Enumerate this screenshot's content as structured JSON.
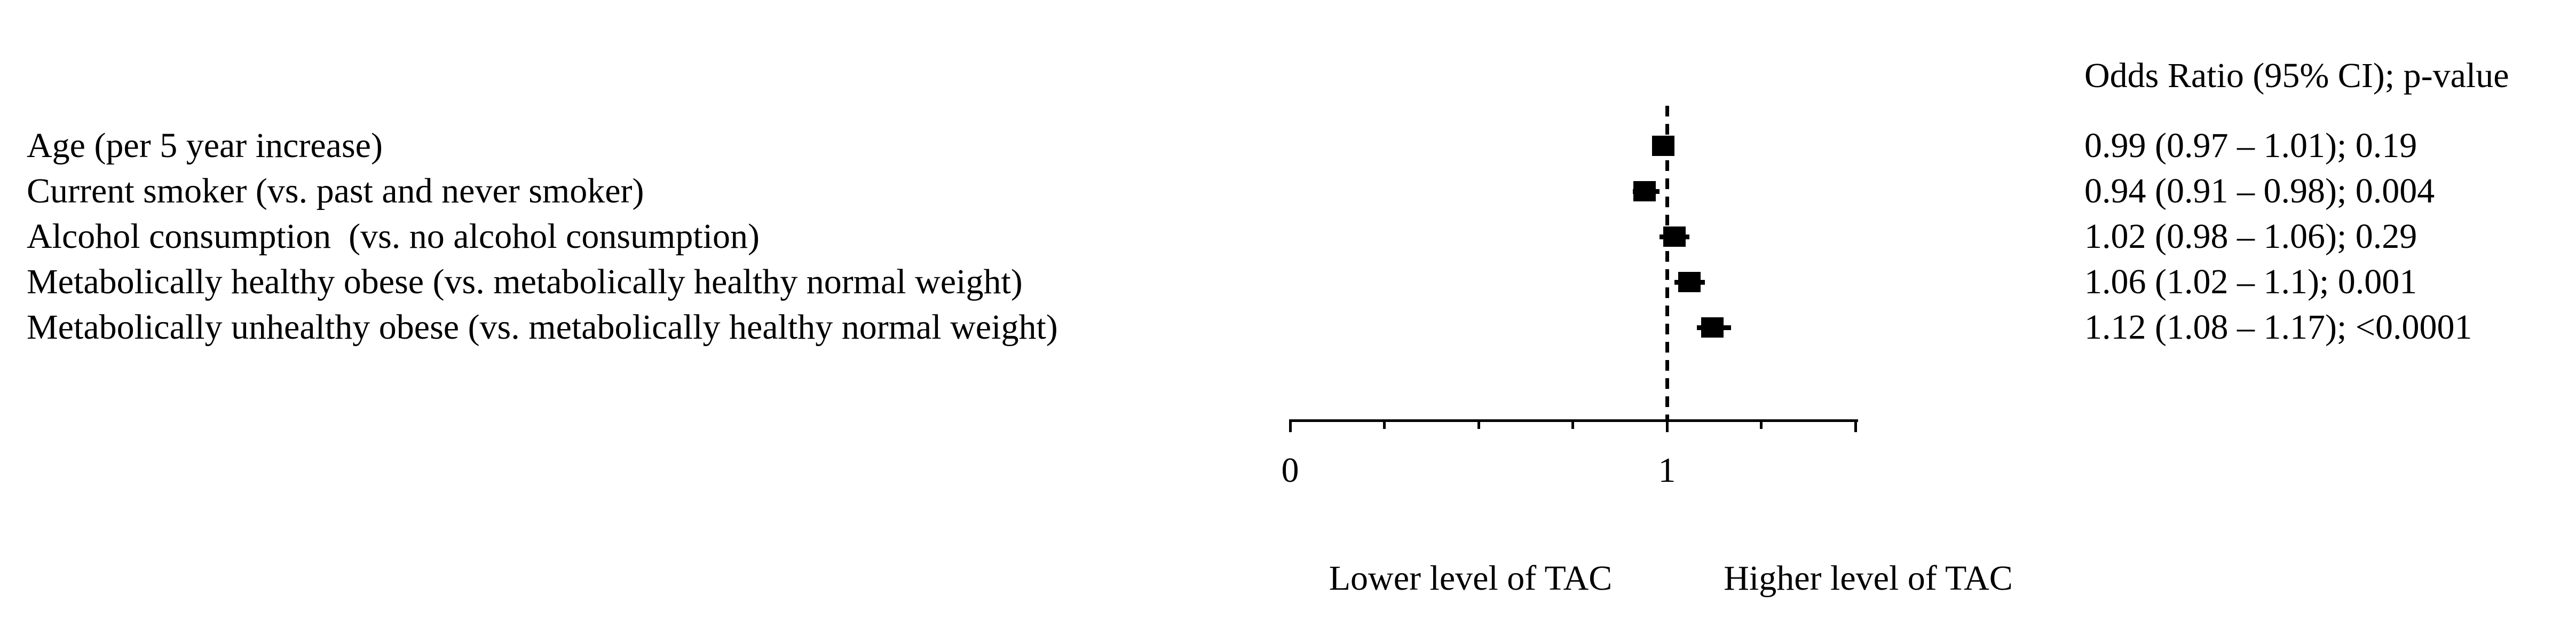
{
  "figure": {
    "background_color": "#ffffff",
    "text_color": "#000000"
  },
  "header": {
    "or_column": "Odds Ratio (95% CI); p-value"
  },
  "footer": {
    "lower": "Lower level of TAC",
    "higher": "Higher level of TAC"
  },
  "chart_data": {
    "type": "scatter",
    "subtype": "forest-plot",
    "title": "",
    "xlabel": "",
    "ylabel": "",
    "legend": null,
    "grid": false,
    "axis": {
      "min": 0,
      "max": 1.5,
      "ticks": [
        0,
        0.25,
        0.5,
        0.75,
        1,
        1.25,
        1.5
      ],
      "major_ticks": [
        0,
        1,
        1.5
      ],
      "tick_labels": [
        {
          "value": 0,
          "label": "0"
        },
        {
          "value": 1,
          "label": "1"
        }
      ],
      "reference_line": 1
    },
    "rows": [
      {
        "label": "Age (per 5 year increase)",
        "or": 0.99,
        "ci_low": 0.97,
        "ci_high": 1.01,
        "p_value": "0.19",
        "display": "0.99 (0.97 – 1.01); 0.19"
      },
      {
        "label": "Current smoker (vs. past and never smoker)",
        "or": 0.94,
        "ci_low": 0.91,
        "ci_high": 0.98,
        "p_value": "0.004",
        "display": "0.94 (0.91 – 0.98); 0.004"
      },
      {
        "label": "Alcohol consumption  (vs. no alcohol consumption)",
        "or": 1.02,
        "ci_low": 0.98,
        "ci_high": 1.06,
        "p_value": "0.29",
        "display": "1.02 (0.98 – 1.06); 0.29"
      },
      {
        "label": "Metabolically healthy obese (vs. metabolically healthy normal weight)",
        "or": 1.06,
        "ci_low": 1.02,
        "ci_high": 1.1,
        "p_value": "0.001",
        "display": "1.06 (1.02 – 1.1); 0.001"
      },
      {
        "label": "Metabolically unhealthy obese (vs. metabolically healthy normal weight)",
        "or": 1.12,
        "ci_low": 1.08,
        "ci_high": 1.17,
        "p_value": "<0.0001",
        "display": "1.12 (1.08 – 1.17); <0.0001"
      }
    ]
  }
}
